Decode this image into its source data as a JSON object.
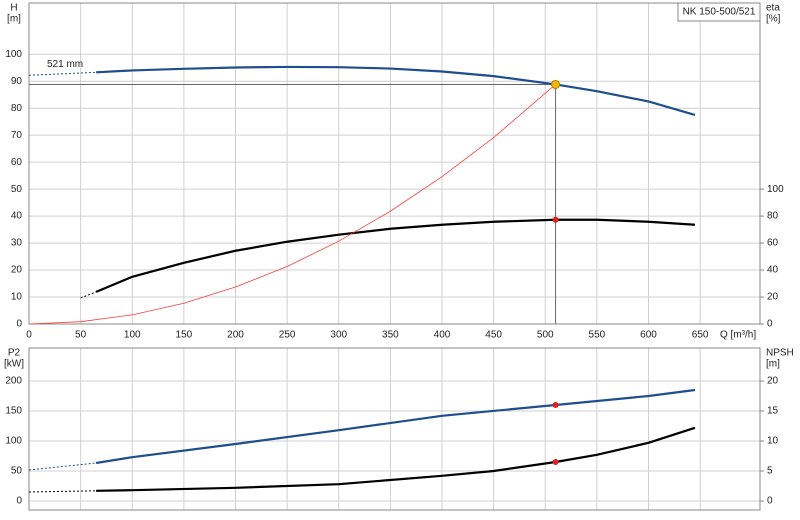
{
  "chart_data": [
    {
      "type": "line",
      "title": "NK 150-500/521",
      "ylabel": [
        "H",
        "[m]"
      ],
      "y2label": [
        "eta",
        "[%]"
      ],
      "xlabel": "Q [m³/h]",
      "annotation": "521 mm",
      "xlim": [
        0,
        708
      ],
      "ylim": [
        0,
        119
      ],
      "y2lim": [
        0,
        238
      ],
      "xticks": [
        0,
        50,
        100,
        150,
        200,
        250,
        300,
        350,
        400,
        450,
        500,
        550,
        600,
        650
      ],
      "yticks": [
        0,
        10,
        20,
        30,
        40,
        50,
        60,
        70,
        80,
        90,
        100
      ],
      "y2ticks": [
        0,
        20,
        40,
        60,
        80,
        100
      ],
      "show_xtick_labels": true,
      "grid": true,
      "series": [
        {
          "color": "#1f4e8c",
          "dashed": true,
          "x": [
            0,
            65
          ],
          "values": [
            92.2,
            93.3
          ]
        },
        {
          "color": "#1f4e8c",
          "x": [
            65,
            100,
            150,
            200,
            250,
            300,
            350,
            400,
            450,
            510,
            550,
            600,
            645
          ],
          "values": [
            93.3,
            94,
            94.6,
            95.1,
            95.3,
            95.2,
            94.7,
            93.6,
            91.9,
            88.8,
            86.3,
            82.5,
            77.5
          ]
        },
        {
          "color": "#000000",
          "dashed": true,
          "axis": "y2",
          "x": [
            50,
            65
          ],
          "values": [
            19.3,
            23.8
          ]
        },
        {
          "color": "#000000",
          "axis": "y2",
          "x": [
            65,
            100,
            150,
            200,
            250,
            300,
            350,
            400,
            450,
            510,
            550,
            600,
            645
          ],
          "values": [
            23.8,
            35,
            45.4,
            54.3,
            61,
            66.2,
            70.6,
            73.6,
            75.8,
            77.3,
            77.3,
            75.8,
            73.6
          ]
        },
        {
          "color": "#ff3b3b",
          "thin": true,
          "x": [
            0,
            50,
            100,
            150,
            200,
            250,
            300,
            350,
            400,
            450,
            510
          ],
          "values": [
            0,
            0.85,
            3.4,
            7.7,
            13.7,
            21.3,
            30.7,
            41.8,
            54.6,
            69.1,
            88.8
          ]
        }
      ],
      "markers": [
        {
          "x": 510,
          "y": 88.8,
          "color": "#f5b800",
          "guide": true
        },
        {
          "x": 510,
          "y": 77.3,
          "color": "#e02020",
          "axis": "y2"
        }
      ]
    },
    {
      "type": "line",
      "ylabel": [
        "P2",
        "[kW]"
      ],
      "y2label": [
        "NPSH",
        "[m]"
      ],
      "xlim": [
        0,
        708
      ],
      "ylim": [
        -15,
        255
      ],
      "y2lim": [
        -1.5,
        25.5
      ],
      "xticks": [
        0,
        50,
        100,
        150,
        200,
        250,
        300,
        350,
        400,
        450,
        500,
        550,
        600,
        650
      ],
      "yticks": [
        0,
        50,
        100,
        150,
        200
      ],
      "y2ticks": [
        0,
        5,
        10,
        15,
        20
      ],
      "show_xtick_labels": false,
      "grid": true,
      "series": [
        {
          "color": "#1f4e8c",
          "dashed": true,
          "x": [
            0,
            65
          ],
          "values": [
            51.7,
            63.3
          ]
        },
        {
          "color": "#1f4e8c",
          "x": [
            65,
            100,
            200,
            300,
            400,
            510,
            600,
            645
          ],
          "values": [
            63.3,
            73,
            95,
            118,
            142,
            160,
            175,
            185
          ]
        },
        {
          "color": "#000000",
          "dashed": true,
          "axis": "y2",
          "x": [
            0,
            65
          ],
          "values": [
            1.5,
            1.7
          ]
        },
        {
          "color": "#000000",
          "axis": "y2",
          "x": [
            65,
            100,
            200,
            300,
            400,
            450,
            510,
            550,
            600,
            645
          ],
          "values": [
            1.7,
            1.8,
            2.2,
            2.8,
            4.2,
            5,
            6.5,
            7.7,
            9.7,
            12.2
          ]
        }
      ],
      "markers": [
        {
          "x": 510,
          "y": 160,
          "color": "#e02020"
        },
        {
          "x": 510,
          "y": 6.5,
          "color": "#e02020",
          "axis": "y2"
        }
      ]
    }
  ]
}
